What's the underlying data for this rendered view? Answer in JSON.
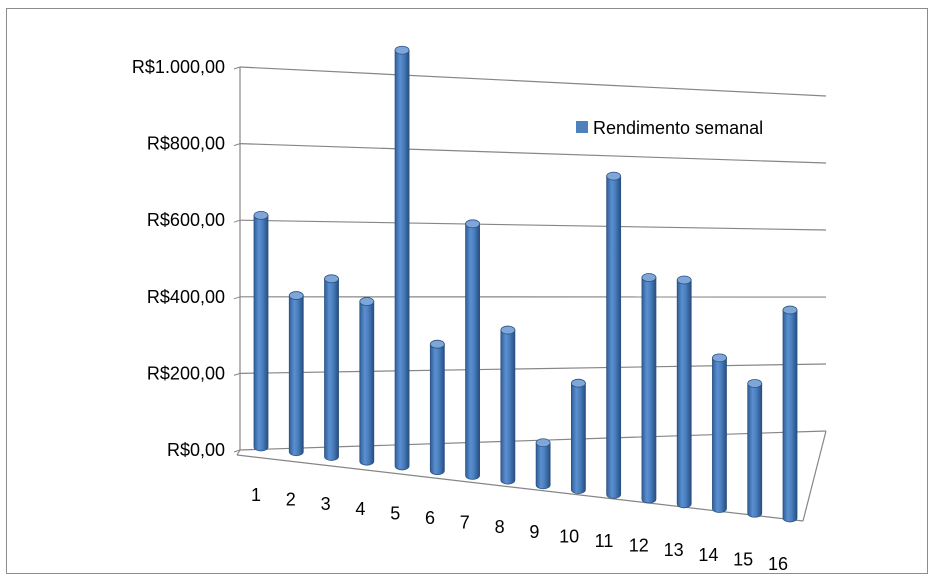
{
  "chart_data": {
    "type": "bar",
    "style": "3d-column",
    "categories": [
      "1",
      "2",
      "3",
      "4",
      "5",
      "6",
      "7",
      "8",
      "9",
      "10",
      "11",
      "12",
      "13",
      "14",
      "15",
      "16"
    ],
    "series": [
      {
        "name": "Rendimento semanal",
        "color": "#4f81bd",
        "values": [
          600,
          400,
          450,
          400,
          1030,
          310,
          610,
          360,
          100,
          250,
          740,
          510,
          510,
          340,
          290,
          460
        ]
      }
    ],
    "ylim": [
      0,
      1000
    ],
    "yticks": [
      "R$0,00",
      "R$200,00",
      "R$400,00",
      "R$600,00",
      "R$800,00",
      "R$1.000,00"
    ],
    "grid": true,
    "legend": "top-right"
  }
}
